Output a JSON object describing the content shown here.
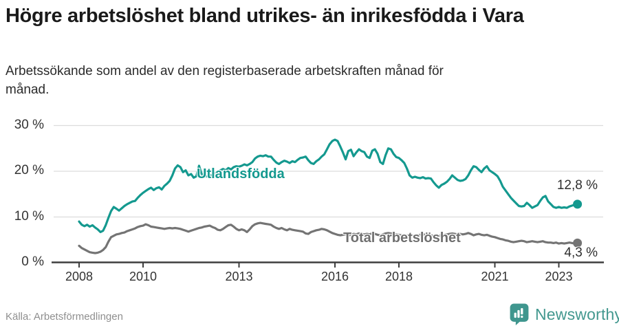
{
  "header": {
    "title": "Högre arbetslöshet bland utrikes- än inrikesfödda i Vara",
    "subtitle": "Arbetssökande som andel av den registerbaserade arbetskraften månad för månad."
  },
  "footer": {
    "source": "Källa: Arbetsförmedlingen",
    "brand": "Newsworthy"
  },
  "colors": {
    "teal": "#14998F",
    "gray": "#747474",
    "gridline": "#dcdcdc",
    "axis": "#3d3d3d",
    "logo": "#3f968e"
  },
  "chart_data": {
    "type": "line",
    "title": "Högre arbetslöshet bland utrikes- än inrikesfödda i Vara",
    "subtitle": "Arbetssökande som andel av den registerbaserade arbetskraften månad för månad.",
    "x_start": 2008,
    "x_step_months": 1,
    "x_ticks": [
      2008,
      2010,
      2013,
      2016,
      2018,
      2021,
      2023
    ],
    "y_ticks": [
      0,
      10,
      20,
      30
    ],
    "y_tick_suffix": " %",
    "ylim": [
      0,
      30
    ],
    "grid": "horizontal",
    "legend_position": "inline-labels",
    "series": [
      {
        "id": "utlandsfodda",
        "name": "Utlandsfödda",
        "color": "#14998F",
        "end_label": "12,8 %",
        "end_value": 12.8,
        "values": [
          9.0,
          8.3,
          8.0,
          8.3,
          7.9,
          8.2,
          7.7,
          7.3,
          6.7,
          7.0,
          8.2,
          9.8,
          11.3,
          12.2,
          11.8,
          11.4,
          11.9,
          12.4,
          12.8,
          13.1,
          13.4,
          13.5,
          14.2,
          14.8,
          15.3,
          15.7,
          16.1,
          16.4,
          15.9,
          16.3,
          16.5,
          16.0,
          16.8,
          17.3,
          17.9,
          19.1,
          20.6,
          21.3,
          20.9,
          19.8,
          20.2,
          19.1,
          19.4,
          18.6,
          18.9,
          21.2,
          19.4,
          18.8,
          18.9,
          19.2,
          19.0,
          19.6,
          19.9,
          20.2,
          20.5,
          20.2,
          20.7,
          20.4,
          20.9,
          21.1,
          21.0,
          21.2,
          21.5,
          21.3,
          21.6,
          22.0,
          22.8,
          23.2,
          23.4,
          23.3,
          23.5,
          23.2,
          23.2,
          22.5,
          21.9,
          21.6,
          22.0,
          22.3,
          22.1,
          21.8,
          22.2,
          22.0,
          22.5,
          22.9,
          23.0,
          23.2,
          22.4,
          21.8,
          21.6,
          22.2,
          22.6,
          23.2,
          23.7,
          24.8,
          25.9,
          26.6,
          26.9,
          26.6,
          25.4,
          24.1,
          22.6,
          24.4,
          24.7,
          23.3,
          24.1,
          24.8,
          24.4,
          24.2,
          23.2,
          22.9,
          24.5,
          24.8,
          23.8,
          22.0,
          21.6,
          23.5,
          25.0,
          24.8,
          23.8,
          23.1,
          22.9,
          22.4,
          21.8,
          20.6,
          19.1,
          18.6,
          18.8,
          18.6,
          18.5,
          18.7,
          18.4,
          18.5,
          18.4,
          17.6,
          16.9,
          16.4,
          17.0,
          17.3,
          17.7,
          18.3,
          19.1,
          18.6,
          18.1,
          17.9,
          18.0,
          18.3,
          19.1,
          20.2,
          21.1,
          20.9,
          20.3,
          19.8,
          20.6,
          21.1,
          20.2,
          19.8,
          19.4,
          18.9,
          17.9,
          16.6,
          15.8,
          15.0,
          14.2,
          13.6,
          13.0,
          12.4,
          12.3,
          12.4,
          13.1,
          12.6,
          12.0,
          12.3,
          12.6,
          13.5,
          14.3,
          14.6,
          13.4,
          12.8,
          12.2,
          12.0,
          12.2,
          12.0,
          12.1,
          12.0,
          12.3,
          12.5,
          12.7,
          12.8
        ]
      },
      {
        "id": "total",
        "name": "Total arbetslöshet",
        "color": "#747474",
        "end_label": "4,3 %",
        "end_value": 4.3,
        "values": [
          3.7,
          3.2,
          2.9,
          2.6,
          2.3,
          2.2,
          2.1,
          2.2,
          2.4,
          2.8,
          3.4,
          4.6,
          5.6,
          5.9,
          6.2,
          6.3,
          6.5,
          6.6,
          6.9,
          7.1,
          7.3,
          7.5,
          7.8,
          8.0,
          8.1,
          8.4,
          8.2,
          7.9,
          7.8,
          7.7,
          7.6,
          7.5,
          7.4,
          7.5,
          7.6,
          7.5,
          7.6,
          7.5,
          7.4,
          7.2,
          7.0,
          6.8,
          7.0,
          7.2,
          7.4,
          7.6,
          7.7,
          7.9,
          8.0,
          8.1,
          7.8,
          7.6,
          7.2,
          7.1,
          7.4,
          7.8,
          8.2,
          8.3,
          7.9,
          7.4,
          7.1,
          7.3,
          7.1,
          6.7,
          7.3,
          8.0,
          8.4,
          8.6,
          8.7,
          8.6,
          8.5,
          8.4,
          8.3,
          7.9,
          7.6,
          7.4,
          7.6,
          7.3,
          7.1,
          7.4,
          7.2,
          7.1,
          7.0,
          6.9,
          6.8,
          6.4,
          6.3,
          6.7,
          6.9,
          7.1,
          7.2,
          7.4,
          7.3,
          7.1,
          6.8,
          6.5,
          6.3,
          6.1,
          6.0,
          6.1,
          6.2,
          6.0,
          6.1,
          6.3,
          6.2,
          6.4,
          6.3,
          6.2,
          6.3,
          6.2,
          6.4,
          6.3,
          6.1,
          6.0,
          6.2,
          6.4,
          6.5,
          6.4,
          6.3,
          6.2,
          6.1,
          6.0,
          5.9,
          6.0,
          6.1,
          6.0,
          5.9,
          6.0,
          6.1,
          6.2,
          6.1,
          6.0,
          6.0,
          5.9,
          5.8,
          5.9,
          6.0,
          6.1,
          6.2,
          6.3,
          6.4,
          6.3,
          6.2,
          6.3,
          6.2,
          6.3,
          6.5,
          6.3,
          6.0,
          6.2,
          6.3,
          6.1,
          6.0,
          6.1,
          5.9,
          5.7,
          5.6,
          5.4,
          5.2,
          5.1,
          4.9,
          4.8,
          4.6,
          4.5,
          4.6,
          4.7,
          4.8,
          4.7,
          4.5,
          4.6,
          4.7,
          4.6,
          4.5,
          4.6,
          4.7,
          4.5,
          4.4,
          4.4,
          4.3,
          4.4,
          4.2,
          4.3,
          4.2,
          4.3,
          4.4,
          4.3,
          4.2,
          4.3
        ]
      }
    ]
  }
}
